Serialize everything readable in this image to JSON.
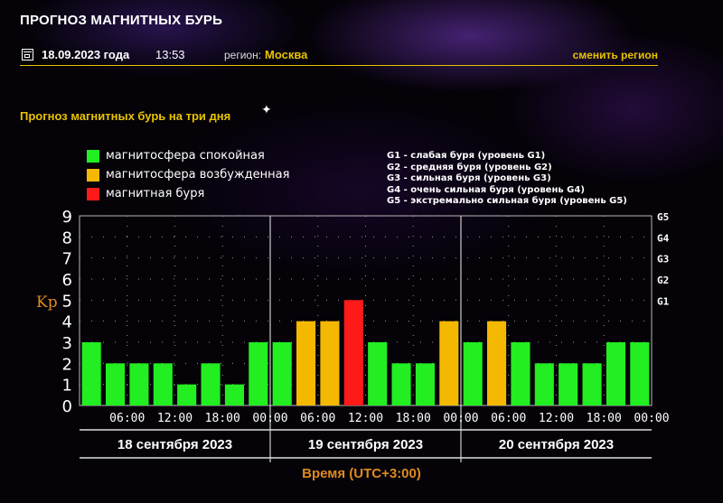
{
  "header": {
    "title": "ПРОГНОЗ МАГНИТНЫХ БУРЬ",
    "date": "18.09.2023 года",
    "time": "13:53",
    "region_label": "регион:",
    "region_value": "Москва",
    "change_region": "сменить регион"
  },
  "subtitle": "Прогноз магнитных бурь на три дня",
  "legend": [
    {
      "label": "магнитосфера спокойная",
      "color": "#22ee22"
    },
    {
      "label": "магнитосфера возбужденная",
      "color": "#f5b800"
    },
    {
      "label": "магнитная буря",
      "color": "#ff1a1a"
    }
  ],
  "g_legend": [
    "G1 - слабая буря (уровень G1)",
    "G2 - средняя буря (уровень G2)",
    "G3 - сильная буря (уровень G3)",
    "G4 - очень сильная буря (уровень G4)",
    "G5 - экстремально сильная буря (уровень G5)"
  ],
  "chart_data": {
    "type": "bar",
    "ylabel": "Kp",
    "xlabel": "Время (UTC+3:00)",
    "ylim": [
      0,
      9
    ],
    "y_ticks": [
      "0",
      "1",
      "2",
      "3",
      "4",
      "5",
      "6",
      "7",
      "8",
      "9"
    ],
    "g_ticks": [
      {
        "label": "G1",
        "kp": 5
      },
      {
        "label": "G2",
        "kp": 6
      },
      {
        "label": "G3",
        "kp": 7
      },
      {
        "label": "G4",
        "kp": 8
      },
      {
        "label": "G5",
        "kp": 9
      }
    ],
    "x_tick_labels": [
      "06:00",
      "12:00",
      "18:00",
      "00:00",
      "06:00",
      "12:00",
      "18:00",
      "00:00",
      "06:00",
      "12:00",
      "18:00",
      "00:00"
    ],
    "days": [
      "18 сентября 2023",
      "19 сентября 2023",
      "20 сентября 2023"
    ],
    "bar_interval_hours": 3,
    "values": [
      3,
      2,
      2,
      2,
      1,
      2,
      1,
      3,
      3,
      4,
      4,
      5,
      3,
      2,
      2,
      4,
      3,
      4,
      3,
      2,
      2,
      2,
      3,
      3
    ],
    "color_thresholds": {
      "calm_max": 3,
      "excited_max": 4,
      "calm_color": "#22ee22",
      "excited_color": "#f5b800",
      "storm_color": "#ff1a1a"
    },
    "grid": true
  }
}
